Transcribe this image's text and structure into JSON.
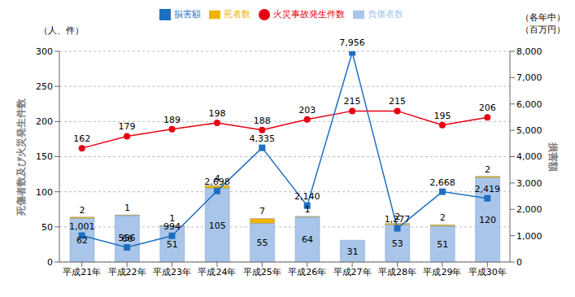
{
  "chart_data": {
    "type": "bar",
    "categories": [
      "平成21年",
      "平成22年",
      "平成23年",
      "平成24年",
      "平成25年",
      "平成26年",
      "平成27年",
      "平成28年",
      "平成29年",
      "平成30年"
    ],
    "series": [
      {
        "name": "負傷者数",
        "type": "bar",
        "color": "#a9c6ea",
        "values": [
          62,
          66,
          51,
          105,
          55,
          64,
          31,
          53,
          51,
          120
        ]
      },
      {
        "name": "死者数",
        "type": "bar",
        "color": "#f0b400",
        "values": [
          2,
          1,
          1,
          4,
          7,
          1,
          0,
          2,
          2,
          2
        ]
      },
      {
        "name": "火災事故発生件数",
        "type": "line",
        "color": "#e60012",
        "marker": "circle",
        "values": [
          162,
          179,
          189,
          198,
          188,
          203,
          215,
          215,
          195,
          206
        ]
      },
      {
        "name": "損害額",
        "type": "line",
        "axis": "y2",
        "color": "#1f6fc0",
        "marker": "square",
        "values": [
          1001,
          556,
          994,
          2698,
          4335,
          2140,
          7956,
          1277,
          2668,
          2419
        ],
        "value_labels": [
          "1,001",
          "556",
          "994",
          "2,698",
          "4,335",
          "2,140",
          "7,956",
          "1,277",
          "2,668",
          "2,419"
        ]
      }
    ],
    "stacked": true,
    "data_labels": true,
    "grid": true,
    "legend": "top",
    "ylim": [
      0,
      300
    ],
    "yticks": [
      0,
      50,
      100,
      150,
      200,
      250,
      300
    ],
    "y2lim": [
      0,
      8000
    ],
    "y2ticks": [
      0,
      {
        "value": 1000,
        "label": "1,000"
      },
      {
        "value": 2000,
        "label": "2,000"
      },
      {
        "value": 3000,
        "label": "3,000"
      },
      {
        "value": 4000,
        "label": "4,000"
      },
      {
        "value": 5000,
        "label": "5,000"
      },
      {
        "value": 6000,
        "label": "6,000"
      },
      {
        "value": 7000,
        "label": "7,000"
      },
      {
        "value": 8000,
        "label": "8,000"
      }
    ],
    "y_label": "死傷者数及び火災発生件数",
    "y_unit": "（人、件）",
    "y2_label": "損害額",
    "y2_unit": "（百万円）",
    "annotation": "（各年中）"
  }
}
